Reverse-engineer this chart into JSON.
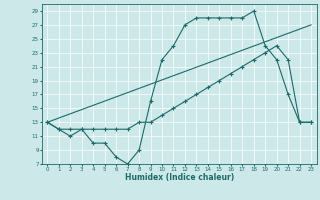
{
  "title": "",
  "xlabel": "Humidex (Indice chaleur)",
  "ylabel": "",
  "bg_color": "#cde8e8",
  "grid_color": "#ffffff",
  "line_color": "#1a6b6b",
  "ylim": [
    7,
    30
  ],
  "yticks": [
    7,
    9,
    11,
    13,
    15,
    17,
    19,
    21,
    23,
    25,
    27,
    29
  ],
  "xlim": [
    -0.5,
    23.5
  ],
  "xticks": [
    0,
    1,
    2,
    3,
    4,
    5,
    6,
    7,
    8,
    9,
    10,
    11,
    12,
    13,
    14,
    15,
    16,
    17,
    18,
    19,
    20,
    21,
    22,
    23
  ],
  "line1_x": [
    0,
    1,
    2,
    3,
    4,
    5,
    6,
    7,
    8,
    9,
    10,
    11,
    12,
    13,
    14,
    15,
    16,
    17,
    18,
    19,
    20,
    21,
    22,
    23
  ],
  "line1_y": [
    13,
    12,
    11,
    12,
    10,
    10,
    8,
    7,
    9,
    16,
    22,
    24,
    27,
    28,
    28,
    28,
    28,
    28,
    29,
    24,
    22,
    17,
    13,
    13
  ],
  "line2_x": [
    0,
    1,
    2,
    3,
    4,
    5,
    6,
    7,
    8,
    9,
    10,
    11,
    12,
    13,
    14,
    15,
    16,
    17,
    18,
    19,
    20,
    21,
    22,
    23
  ],
  "line2_y": [
    13,
    12,
    12,
    12,
    12,
    12,
    12,
    12,
    13,
    13,
    14,
    15,
    16,
    17,
    18,
    19,
    20,
    21,
    22,
    23,
    24,
    22,
    13,
    13
  ],
  "line3_x": [
    0,
    23
  ],
  "line3_y": [
    13,
    27
  ]
}
